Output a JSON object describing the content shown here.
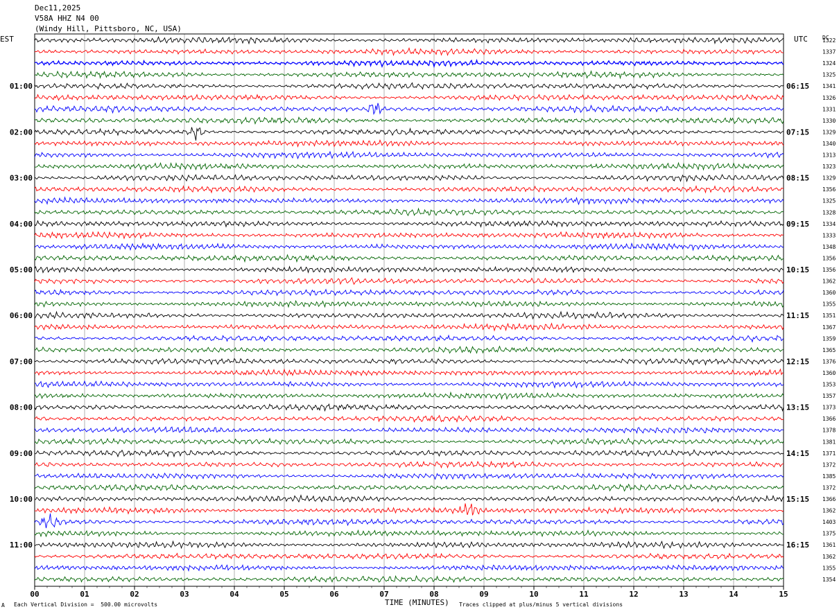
{
  "header": {
    "date": "Dec11,2025",
    "station": "V58A HHZ N4 00",
    "location": "(Windy Hill, Pittsboro, NC, USA)"
  },
  "left_tz": "EST",
  "right_tz": "UTC",
  "dc_label": "DC",
  "footer": {
    "scale_text": "Each Vertical Division =  500.00 microvolts",
    "xlabel": "TIME (MINUTES)",
    "clip_text": "Traces clipped at plus/minus 5 vertical divisions",
    "corner_mark": "A"
  },
  "chart_data": {
    "type": "line",
    "xlabel": "TIME (MINUTES)",
    "xlim": [
      0,
      15
    ],
    "x_ticks": [
      "00",
      "01",
      "02",
      "03",
      "04",
      "05",
      "06",
      "07",
      "08",
      "09",
      "10",
      "11",
      "12",
      "13",
      "14",
      "15"
    ],
    "traces_per_hour": 4,
    "trace_colors": [
      "#000000",
      "#ff0000",
      "#0000ff",
      "#006400"
    ],
    "left_hour_labels": [
      "01:00",
      "02:00",
      "03:00",
      "04:00",
      "05:00",
      "06:00",
      "07:00",
      "08:00",
      "09:00",
      "10:00",
      "11:00"
    ],
    "right_hour_labels": [
      "06:15",
      "07:15",
      "08:15",
      "09:15",
      "10:15",
      "11:15",
      "12:15",
      "13:15",
      "14:15",
      "15:15",
      "16:15"
    ],
    "dc_offsets": [
      1322,
      1337,
      1324,
      1325,
      1341,
      1326,
      1331,
      1330,
      1329,
      1340,
      1313,
      1323,
      1329,
      1356,
      1325,
      1328,
      1334,
      1333,
      1348,
      1356,
      1356,
      1362,
      1360,
      1355,
      1351,
      1367,
      1359,
      1365,
      1376,
      1360,
      1353,
      1357,
      1373,
      1366,
      1378,
      1381,
      1371,
      1372,
      1385,
      1372,
      1366,
      1362,
      1403,
      1375,
      1361,
      1362,
      1355,
      1354
    ],
    "events": [
      {
        "trace": 2,
        "minute": 1.2,
        "note": "noisy burst"
      },
      {
        "trace": 6,
        "minute": 6.8
      },
      {
        "trace": 8,
        "minute": 3.2
      },
      {
        "trace": 41,
        "minute": 8.7
      },
      {
        "trace": 42,
        "minute": 0.3
      }
    ]
  }
}
